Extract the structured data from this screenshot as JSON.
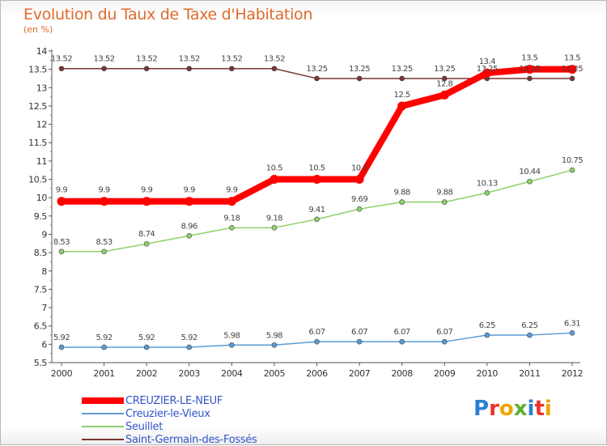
{
  "title": "Evolution du Taux de Taxe d'Habitation",
  "unit": "(en %)",
  "logo": {
    "text": "Proxiti",
    "colors": [
      "#2a7fd4",
      "#e8342a",
      "#f2a400",
      "#5bb030",
      "#2a7fd4",
      "#e8342a",
      "#f2a400"
    ]
  },
  "chart_data": {
    "type": "line",
    "x": [
      "2000",
      "2001",
      "2002",
      "2003",
      "2004",
      "2005",
      "2006",
      "2007",
      "2008",
      "2009",
      "2010",
      "2011",
      "2012"
    ],
    "y_ticks": [
      "5.5",
      "6",
      "6.5",
      "7",
      "7.5",
      "8",
      "8.5",
      "9",
      "9.5",
      "10",
      "10.5",
      "11",
      "11.5",
      "12",
      "12.5",
      "13",
      "13.5",
      "14"
    ],
    "ylim": [
      5.5,
      14
    ],
    "grid": false,
    "legend_position": "bottom-left",
    "series": [
      {
        "name": "CREUZIER-LE-NEUF",
        "color": "#ff0000",
        "values": [
          9.9,
          9.9,
          9.9,
          9.9,
          9.9,
          10.5,
          10.5,
          10.5,
          12.5,
          12.8,
          13.4,
          13.5,
          13.5
        ],
        "labels": [
          "9.9",
          "9.9",
          "9.9",
          "9.9",
          "9.9",
          "10.5",
          "10.5",
          "10.5",
          "12.5",
          "12.8",
          "13.4",
          "13.5",
          "13.5"
        ]
      },
      {
        "name": "Creuzier-le-Vieux",
        "color": "#5b9bd5",
        "values": [
          5.92,
          5.92,
          5.92,
          5.92,
          5.98,
          5.98,
          6.07,
          6.07,
          6.07,
          6.07,
          6.25,
          6.25,
          6.31
        ],
        "labels": [
          "5.92",
          "5.92",
          "5.92",
          "5.92",
          "5.98",
          "5.98",
          "6.07",
          "6.07",
          "6.07",
          "6.07",
          "6.25",
          "6.25",
          "6.31"
        ]
      },
      {
        "name": "Seuillet",
        "color": "#8fd16a",
        "values": [
          8.53,
          8.53,
          8.74,
          8.96,
          9.18,
          9.18,
          9.41,
          9.69,
          9.88,
          9.88,
          10.13,
          10.44,
          10.75
        ],
        "labels": [
          "8.53",
          "8.53",
          "8.74",
          "8.96",
          "9.18",
          "9.18",
          "9.41",
          "9.69",
          "9.88",
          "9.88",
          "10.13",
          "10.44",
          "10.75"
        ]
      },
      {
        "name": "Saint-Germain-des-Fossés",
        "color": "#7a3535",
        "values": [
          13.52,
          13.52,
          13.52,
          13.52,
          13.52,
          13.52,
          13.25,
          13.25,
          13.25,
          13.25,
          13.25,
          13.25,
          13.25
        ],
        "labels": [
          "13.52",
          "13.52",
          "13.52",
          "13.52",
          "13.52",
          "13.52",
          "13.25",
          "13.25",
          "13.25",
          "13.25",
          "13.25",
          "13.25",
          "13.25"
        ]
      }
    ]
  }
}
